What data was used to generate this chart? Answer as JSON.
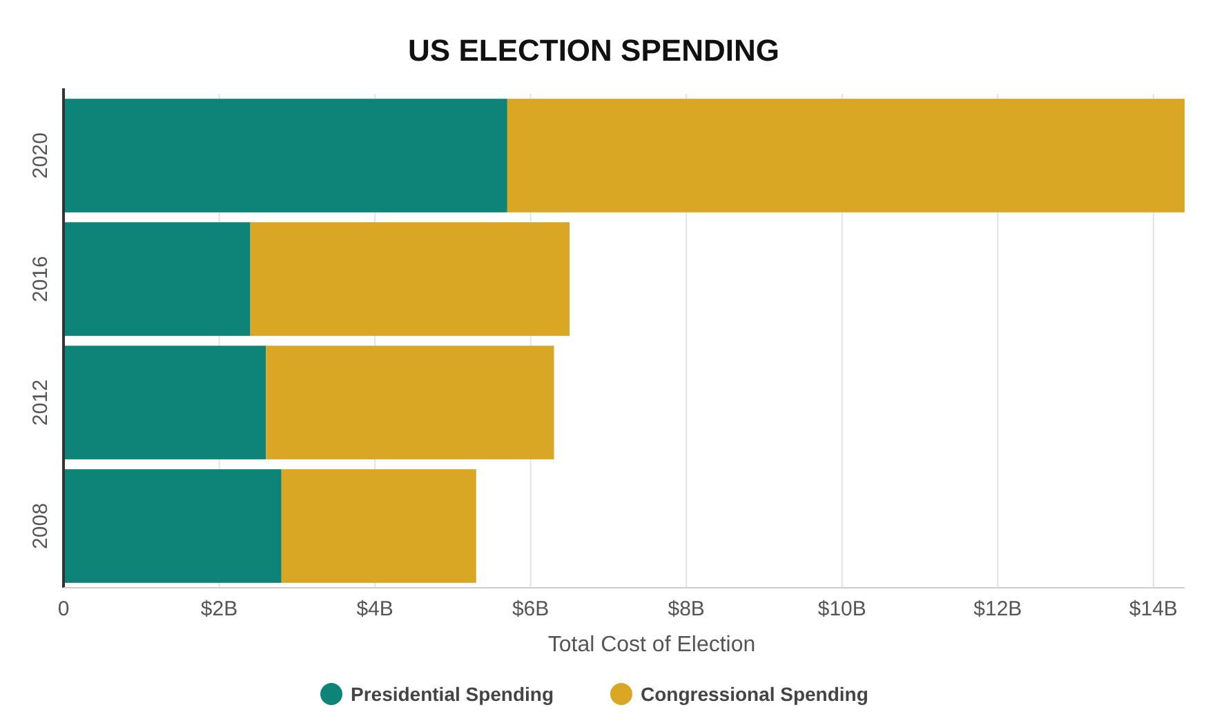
{
  "chart_data": {
    "type": "bar",
    "title": "US ELECTION SPENDING",
    "xlabel": "Total Cost of Election",
    "orientation": "horizontal",
    "stacked": true,
    "categories": [
      "2020",
      "2016",
      "2012",
      "2008"
    ],
    "series": [
      {
        "name": "Presidential Spending",
        "color": "#0e8478",
        "values": [
          5.7,
          2.4,
          2.6,
          2.8
        ]
      },
      {
        "name": "Congressional Spending",
        "color": "#d9a724",
        "values": [
          8.7,
          4.1,
          3.7,
          2.5
        ]
      }
    ],
    "xlim": [
      0,
      14.4
    ],
    "xticks": [
      {
        "value": 0,
        "label": "0"
      },
      {
        "value": 2,
        "label": "$2B"
      },
      {
        "value": 4,
        "label": "$4B"
      },
      {
        "value": 6,
        "label": "$6B"
      },
      {
        "value": 8,
        "label": "$8B"
      },
      {
        "value": 10,
        "label": "$10B"
      },
      {
        "value": 12,
        "label": "$12B"
      },
      {
        "value": 14,
        "label": "$14B"
      }
    ],
    "grid": "x",
    "legend": "bottom"
  }
}
